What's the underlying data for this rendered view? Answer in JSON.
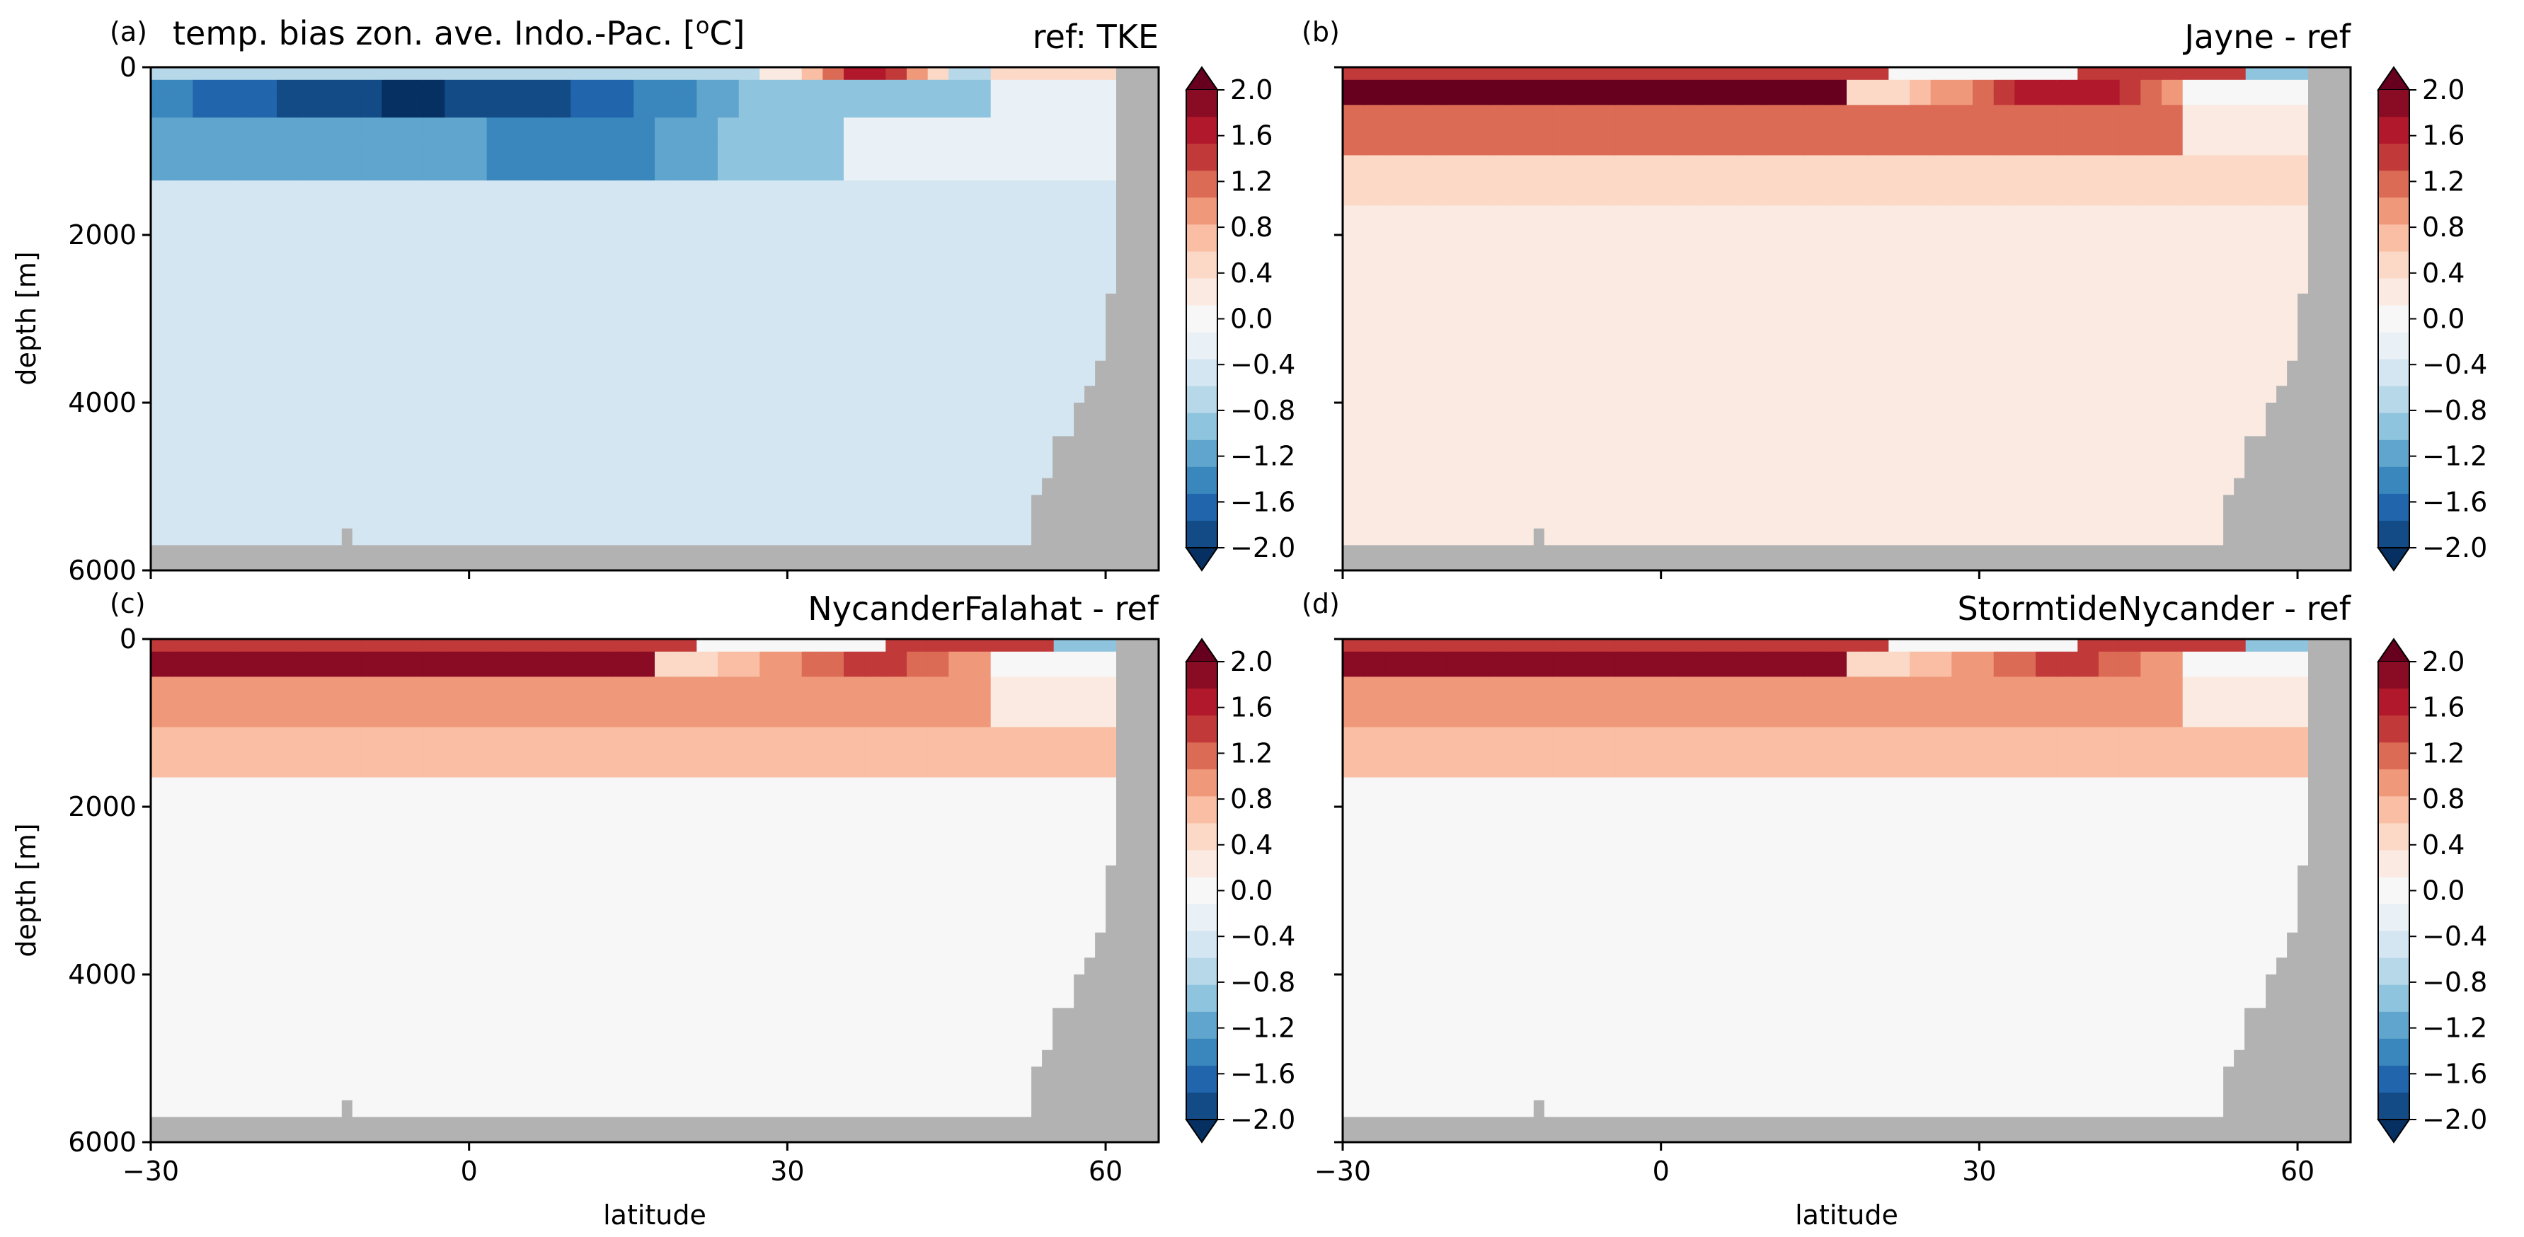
{
  "figure": {
    "xlabel": "latitude",
    "ylabel": "depth [m]",
    "x_ticks": [
      "−30",
      "0",
      "30",
      "60"
    ],
    "y_ticks": [
      "0",
      "2000",
      "4000",
      "6000"
    ],
    "cbar_ticks": [
      "2.0",
      "1.6",
      "1.2",
      "0.8",
      "0.4",
      "0.0",
      "−0.4",
      "−0.8",
      "−1.2",
      "−1.6",
      "−2.0"
    ],
    "land_color": "#b2b2b2",
    "colormap": "RdBu_r",
    "cmap_colors": [
      "#053061",
      "#134b87",
      "#2166ac",
      "#3a87bd",
      "#5fa5cd",
      "#8ec4de",
      "#b7d8e9",
      "#d4e6f1",
      "#e9f1f6",
      "#f7f7f7",
      "#faeae2",
      "#fbd9c6",
      "#f9bea3",
      "#f0987a",
      "#db6b55",
      "#c13939",
      "#b2182b",
      "#8a0b24",
      "#67001f"
    ]
  },
  "chart_data": [
    {
      "type": "heatmap",
      "panel": "(a)",
      "title": "temp. bias zon. ave. Indo.-Pac. [°C]",
      "title_parts": {
        "main": "temp. bias zon. ave. Indo.-Pac. [",
        "sup": "o",
        "end": "C]"
      },
      "subtitle": "ref: TKE",
      "xlabel": "",
      "ylabel": "depth [m]",
      "xlim": [
        -30,
        65
      ],
      "ylim": [
        6000,
        0
      ],
      "clim": [
        -2.0,
        2.0
      ],
      "description": "TKE reference bias: strong cold bias (≈ −1.6 to −2.0 °C) in upper 0–1500 m between 30°S and 20°N, weak warm bias (≈ +1.6) near surface at 35–45°N, weak cold bias (≈ −0.3) in deep ocean",
      "bias_levels": {
        "upper_core": -1.9,
        "upper_band": -1.2,
        "nh_surface": 1.6,
        "intermediate": -0.35,
        "deep": -0.45
      }
    },
    {
      "type": "heatmap",
      "panel": "(b)",
      "title": "",
      "subtitle": "Jayne - ref",
      "xlim": [
        -30,
        65
      ],
      "ylim": [
        6000,
        0
      ],
      "clim": [
        -2.0,
        2.0
      ],
      "description": "Jayne minus ref: strong warm bias (≈ +1.6 to +2.0 °C) in upper 0–800 m between 30°S and 15°N, warm bias ≈ +1.2 at 30–45°N, weak warm (≈ +0.2) below",
      "bias_levels": {
        "upper_core": 1.9,
        "upper_band": 1.3,
        "intermediate": 0.5,
        "deep": 0.15
      }
    },
    {
      "type": "heatmap",
      "panel": "(c)",
      "title": "",
      "subtitle": "NycanderFalahat - ref",
      "xlim": [
        -30,
        65
      ],
      "ylim": [
        6000,
        0
      ],
      "clim": [
        -2.0,
        2.0
      ],
      "description": "NycanderFalahat minus ref: warm bias ≈ +1.6 to +2.0 °C in upper 0–500 m around 20°S–15°N, ≈ +1.0 at 30–45°N, weak warm ≈ +0.1 below 1500 m",
      "bias_levels": {
        "upper_core": 1.8,
        "upper_band": 1.0,
        "intermediate": 0.6,
        "deep": 0.1
      }
    },
    {
      "type": "heatmap",
      "panel": "(d)",
      "title": "",
      "subtitle": "StormtideNycander - ref",
      "xlim": [
        -30,
        65
      ],
      "ylim": [
        6000,
        0
      ],
      "clim": [
        -2.0,
        2.0
      ],
      "description": "StormtideNycander minus ref: similar to (c) — warm bias ≈ +1.6 to +2.0 °C near surface 20°S–15°N, ≈ +1.2 at 30–45°N, weak warm below",
      "bias_levels": {
        "upper_core": 1.8,
        "upper_band": 1.0,
        "intermediate": 0.6,
        "deep": 0.1
      }
    }
  ]
}
